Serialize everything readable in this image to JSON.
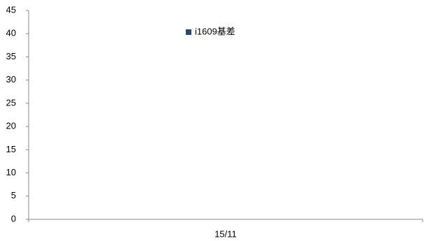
{
  "chart_data": {
    "type": "bar",
    "categories": [
      "15/11"
    ],
    "series": [
      {
        "name": "i1609基差",
        "color": "#244a7c",
        "values": [
          0
        ]
      }
    ],
    "ylim": [
      0,
      45
    ],
    "yticks": [
      0,
      5,
      10,
      15,
      20,
      25,
      30,
      35,
      40,
      45
    ],
    "legend": "top"
  }
}
